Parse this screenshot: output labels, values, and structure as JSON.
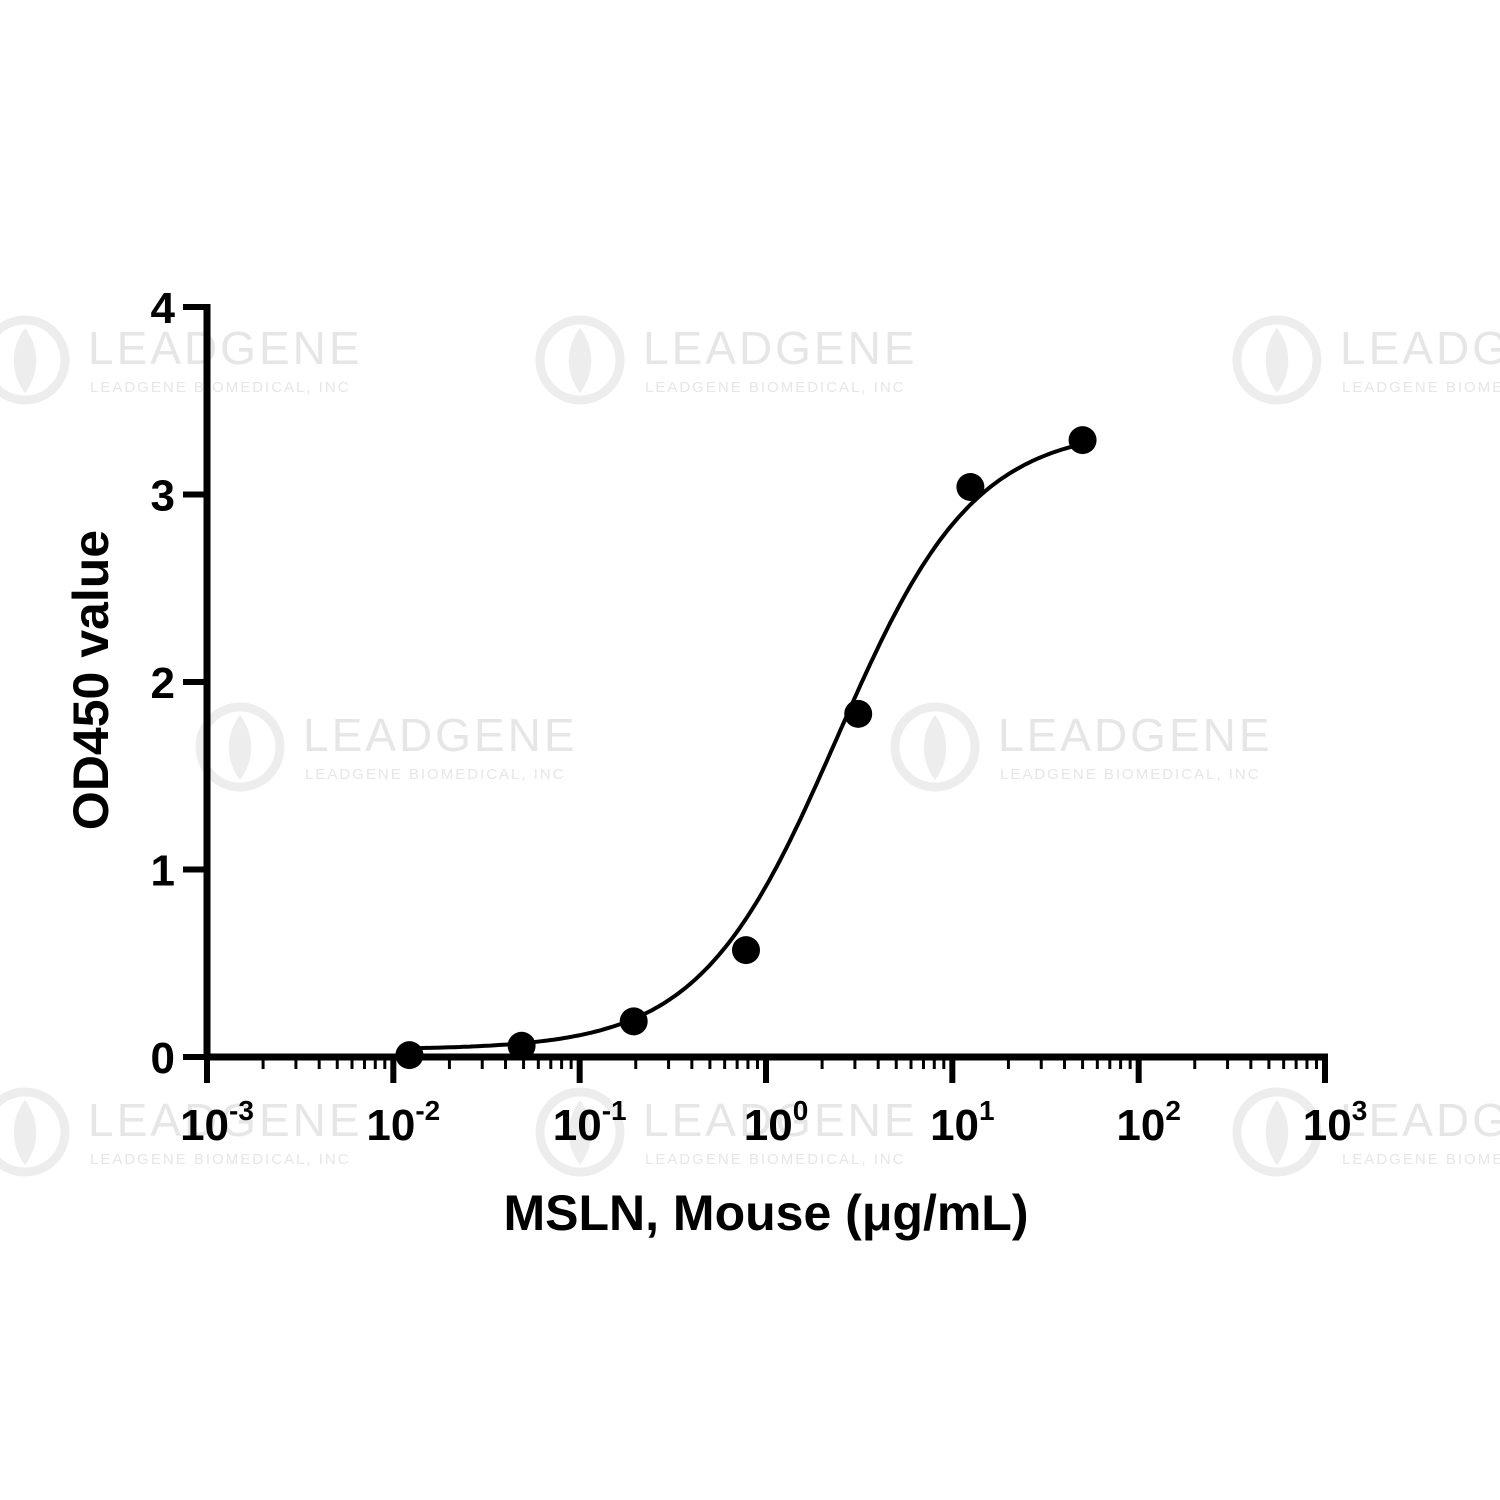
{
  "watermark": {
    "brand": "LEADGENE",
    "company": "LEADGENE BIOMEDICAL, INC"
  },
  "chart_data": {
    "type": "scatter",
    "x_scale": "log",
    "xlabel": "MSLN, Mouse (μg/mL)",
    "ylabel": "OD450 value",
    "xlim": [
      0.001,
      1000
    ],
    "ylim": [
      0,
      4
    ],
    "x_ticks": [
      {
        "base": "10",
        "exp": "-3"
      },
      {
        "base": "10",
        "exp": "-2"
      },
      {
        "base": "10",
        "exp": "-1"
      },
      {
        "base": "10",
        "exp": "0"
      },
      {
        "base": "10",
        "exp": "1"
      },
      {
        "base": "10",
        "exp": "2"
      },
      {
        "base": "10",
        "exp": "3"
      }
    ],
    "y_ticks": [
      "0",
      "1",
      "2",
      "3",
      "4"
    ],
    "grid": false,
    "series": [
      {
        "x": [
          0.0122,
          0.0488,
          0.195,
          0.781,
          3.125,
          12.5,
          50
        ],
        "y": [
          0.01,
          0.06,
          0.19,
          0.57,
          1.83,
          3.04,
          3.29
        ],
        "marker": "filled-circle",
        "color": "#000000",
        "fit": "4PL sigmoidal curve"
      }
    ]
  }
}
